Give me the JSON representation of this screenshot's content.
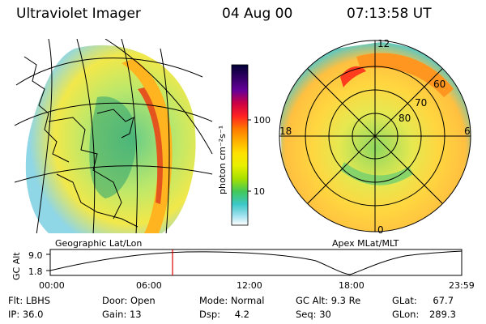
{
  "header": {
    "title": "Ultraviolet Imager",
    "date": "04 Aug 00",
    "time": "07:13:58 UT"
  },
  "left_panel": {
    "caption": "Geographic Lat/Lon"
  },
  "right_panel": {
    "caption": "Apex MLat/MLT",
    "mlt_labels": [
      "12",
      "18",
      "6",
      "0"
    ],
    "mlat_labels": [
      "60",
      "70",
      "80"
    ]
  },
  "colorbar": {
    "label": "photon cm⁻²s⁻¹",
    "tick_labels": [
      "100",
      "10"
    ],
    "colors": [
      "#000033",
      "#330066",
      "#660099",
      "#cc0044",
      "#ff2222",
      "#ff7a00",
      "#ffb400",
      "#ffe000",
      "#e8f000",
      "#a6e000",
      "#42c85a",
      "#3cc8c8",
      "#9fe0ee",
      "#ffffff"
    ]
  },
  "altitude_plot": {
    "ylabel": "GC Alt",
    "y_ticks": [
      "9.0",
      "1.8"
    ],
    "x_ticks": [
      "00:00",
      "06:00",
      "12:00",
      "18:00",
      "23:59"
    ],
    "current_time_marker": "07:13"
  },
  "info": {
    "flt_label": "Flt:",
    "flt_value": "LBHS",
    "ip_label": "IP:",
    "ip_value": "36.0",
    "door_label": "Door:",
    "door_value": "Open",
    "gain_label": "Gain:",
    "gain_value": "13",
    "mode_label": "Mode:",
    "mode_value": "Normal",
    "dsp_label": "Dsp:",
    "dsp_value": "4.2",
    "gcalt_label": "GC Alt:",
    "gcalt_value": "9.3 Re",
    "seq_label": "Seq:",
    "seq_value": "30",
    "glat_label": "GLat:",
    "glat_value": "67.7",
    "glon_label": "GLon:",
    "glon_value": "289.3"
  }
}
